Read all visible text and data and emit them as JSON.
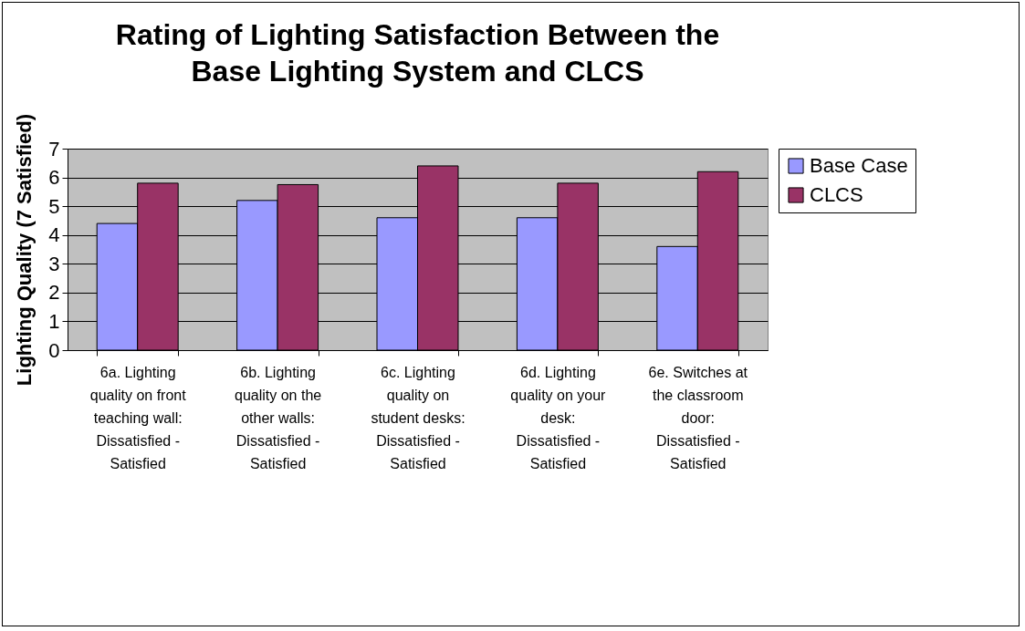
{
  "chart_data": {
    "type": "bar",
    "title": "Rating of Lighting Satisfaction Between the Base Lighting System and CLCS",
    "ylabel": "Lighting Quality (7 Satisfied)",
    "categories": [
      "6a. Lighting quality on front teaching wall: Dissatisfied - Satisfied",
      "6b. Lighting quality on the other walls: Dissatisfied - Satisfied",
      "6c. Lighting quality on student desks: Dissatisfied - Satisfied",
      "6d. Lighting quality on your desk: Dissatisfied - Satisfied",
      "6e. Switches at the classroom door: Dissatisfied - Satisfied"
    ],
    "series": [
      {
        "name": "Base Case",
        "color": "#9999ff",
        "values": [
          4.4,
          5.2,
          4.6,
          4.6,
          3.6
        ]
      },
      {
        "name": "CLCS",
        "color": "#993366",
        "values": [
          5.8,
          5.75,
          6.4,
          5.8,
          6.2
        ]
      }
    ],
    "ylim": [
      0,
      7
    ],
    "yticks": [
      0,
      1,
      2,
      3,
      4,
      5,
      6,
      7
    ],
    "grid": "y",
    "legend": "right"
  }
}
